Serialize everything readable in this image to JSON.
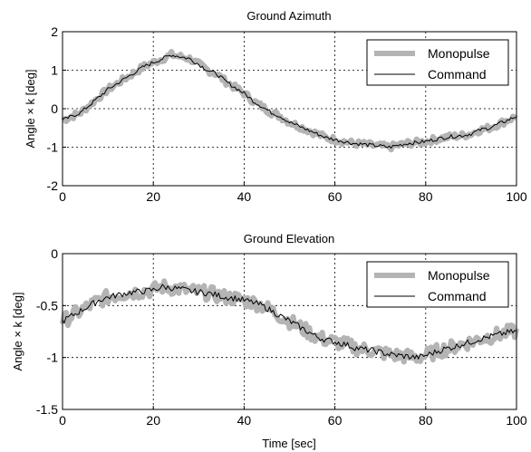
{
  "chart_data": [
    {
      "type": "line",
      "title": "Ground Azimuth",
      "xlabel": "",
      "ylabel": "Angle × k [deg]",
      "xlim": [
        0,
        100
      ],
      "ylim": [
        -2,
        2
      ],
      "xticks": [
        0,
        20,
        40,
        60,
        80,
        100
      ],
      "yticks": [
        -2,
        -1,
        0,
        1,
        2
      ],
      "grid": true,
      "legend_position": "top-right",
      "series": [
        {
          "name": "Monopulse",
          "color": "#b4b4b4",
          "x": [
            0,
            2,
            4,
            6,
            8,
            10,
            12,
            14,
            16,
            18,
            20,
            22,
            24,
            26,
            28,
            30,
            32,
            34,
            36,
            38,
            40,
            42,
            44,
            46,
            48,
            50,
            52,
            54,
            56,
            58,
            60,
            62,
            64,
            66,
            68,
            70,
            72,
            74,
            76,
            78,
            80,
            82,
            84,
            86,
            88,
            90,
            92,
            94,
            96,
            98,
            100
          ],
          "y": [
            -0.3,
            -0.2,
            -0.1,
            0.1,
            0.3,
            0.5,
            0.65,
            0.8,
            0.95,
            1.1,
            1.2,
            1.3,
            1.4,
            1.35,
            1.3,
            1.15,
            1.0,
            0.9,
            0.7,
            0.55,
            0.4,
            0.2,
            0.05,
            -0.1,
            -0.2,
            -0.35,
            -0.45,
            -0.55,
            -0.65,
            -0.75,
            -0.8,
            -0.85,
            -0.9,
            -0.92,
            -0.95,
            -0.97,
            -1.0,
            -0.95,
            -0.9,
            -0.88,
            -0.85,
            -0.8,
            -0.75,
            -0.72,
            -0.7,
            -0.65,
            -0.55,
            -0.5,
            -0.4,
            -0.3,
            -0.2
          ],
          "noise": 0.09
        },
        {
          "name": "Command",
          "color": "#000000",
          "x": [
            0,
            2,
            4,
            6,
            8,
            10,
            12,
            14,
            16,
            18,
            20,
            22,
            24,
            26,
            28,
            30,
            32,
            34,
            36,
            38,
            40,
            42,
            44,
            46,
            48,
            50,
            52,
            54,
            56,
            58,
            60,
            62,
            64,
            66,
            68,
            70,
            72,
            74,
            76,
            78,
            80,
            82,
            84,
            86,
            88,
            90,
            92,
            94,
            96,
            98,
            100
          ],
          "y": [
            -0.3,
            -0.2,
            -0.1,
            0.1,
            0.3,
            0.5,
            0.65,
            0.8,
            0.95,
            1.1,
            1.2,
            1.3,
            1.4,
            1.35,
            1.3,
            1.15,
            1.0,
            0.9,
            0.7,
            0.55,
            0.4,
            0.2,
            0.05,
            -0.1,
            -0.2,
            -0.35,
            -0.45,
            -0.55,
            -0.65,
            -0.75,
            -0.8,
            -0.85,
            -0.9,
            -0.92,
            -0.95,
            -0.97,
            -1.0,
            -0.95,
            -0.9,
            -0.88,
            -0.85,
            -0.8,
            -0.75,
            -0.72,
            -0.7,
            -0.65,
            -0.55,
            -0.5,
            -0.4,
            -0.3,
            -0.2
          ],
          "noise": 0.05
        }
      ]
    },
    {
      "type": "line",
      "title": "Ground Elevation",
      "xlabel": "Time [sec]",
      "ylabel": "Angle × k [deg]",
      "xlim": [
        0,
        100
      ],
      "ylim": [
        -1.5,
        0
      ],
      "xticks": [
        0,
        20,
        40,
        60,
        80,
        100
      ],
      "yticks": [
        -1.5,
        -1,
        -0.5,
        0
      ],
      "grid": true,
      "legend_position": "top-right",
      "series": [
        {
          "name": "Monopulse",
          "color": "#b4b4b4",
          "x": [
            0,
            2,
            4,
            6,
            8,
            10,
            12,
            14,
            16,
            18,
            20,
            22,
            24,
            26,
            28,
            30,
            32,
            34,
            36,
            38,
            40,
            42,
            44,
            46,
            48,
            50,
            52,
            54,
            56,
            58,
            60,
            62,
            64,
            66,
            68,
            70,
            72,
            74,
            76,
            78,
            80,
            82,
            84,
            86,
            88,
            90,
            92,
            94,
            96,
            98,
            100
          ],
          "y": [
            -0.65,
            -0.6,
            -0.55,
            -0.5,
            -0.45,
            -0.42,
            -0.4,
            -0.38,
            -0.37,
            -0.36,
            -0.35,
            -0.32,
            -0.33,
            -0.34,
            -0.36,
            -0.37,
            -0.38,
            -0.4,
            -0.42,
            -0.43,
            -0.45,
            -0.47,
            -0.5,
            -0.55,
            -0.6,
            -0.65,
            -0.7,
            -0.75,
            -0.8,
            -0.83,
            -0.85,
            -0.87,
            -0.9,
            -0.92,
            -0.93,
            -0.95,
            -0.97,
            -0.98,
            -0.99,
            -1.0,
            -0.98,
            -0.95,
            -0.92,
            -0.9,
            -0.87,
            -0.85,
            -0.82,
            -0.8,
            -0.78,
            -0.76,
            -0.75
          ],
          "noise": 0.07
        },
        {
          "name": "Command",
          "color": "#000000",
          "x": [
            0,
            2,
            4,
            6,
            8,
            10,
            12,
            14,
            16,
            18,
            20,
            22,
            24,
            26,
            28,
            30,
            32,
            34,
            36,
            38,
            40,
            42,
            44,
            46,
            48,
            50,
            52,
            54,
            56,
            58,
            60,
            62,
            64,
            66,
            68,
            70,
            72,
            74,
            76,
            78,
            80,
            82,
            84,
            86,
            88,
            90,
            92,
            94,
            96,
            98,
            100
          ],
          "y": [
            -0.65,
            -0.6,
            -0.55,
            -0.5,
            -0.45,
            -0.42,
            -0.4,
            -0.38,
            -0.37,
            -0.36,
            -0.35,
            -0.32,
            -0.33,
            -0.34,
            -0.36,
            -0.37,
            -0.38,
            -0.4,
            -0.42,
            -0.43,
            -0.45,
            -0.47,
            -0.5,
            -0.55,
            -0.6,
            -0.65,
            -0.7,
            -0.75,
            -0.8,
            -0.83,
            -0.85,
            -0.87,
            -0.9,
            -0.92,
            -0.93,
            -0.95,
            -0.97,
            -0.98,
            -0.99,
            -1.0,
            -0.98,
            -0.95,
            -0.92,
            -0.9,
            -0.87,
            -0.85,
            -0.82,
            -0.8,
            -0.78,
            -0.76,
            -0.75
          ],
          "noise": 0.03
        }
      ]
    }
  ]
}
